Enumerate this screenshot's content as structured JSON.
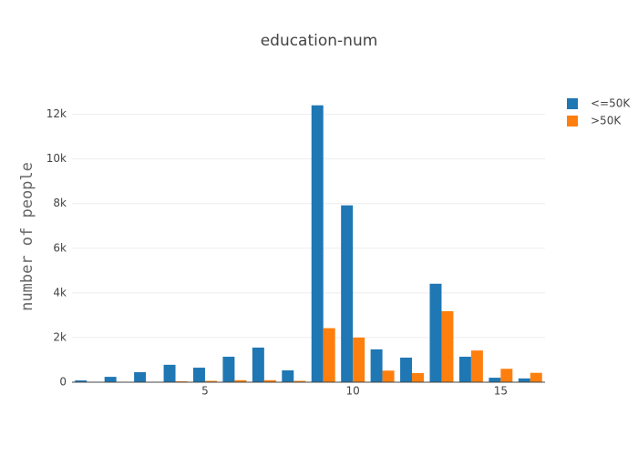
{
  "chart_data": {
    "type": "bar",
    "title": "education-num",
    "y_label": "number of people",
    "x": [
      1,
      2,
      3,
      4,
      5,
      6,
      7,
      8,
      9,
      10,
      11,
      12,
      13,
      14,
      15,
      16
    ],
    "series": [
      {
        "name": "<=50K",
        "color": "#1f77b4",
        "values": [
          80,
          240,
          450,
          780,
          650,
          1140,
          1550,
          530,
          12400,
          7920,
          1470,
          1100,
          4410,
          1140,
          200,
          170
        ]
      },
      {
        "name": ">50K",
        "color": "#ff7f0e",
        "values": [
          0,
          20,
          20,
          40,
          60,
          90,
          90,
          60,
          2420,
          2000,
          520,
          410,
          3180,
          1420,
          600,
          420
        ]
      }
    ],
    "xlim": [
      0.5,
      16.5
    ],
    "xticks": [
      5,
      10,
      15
    ],
    "ylim": [
      0,
      13000
    ],
    "yticks": [
      0,
      {
        "value": 2000,
        "label": "2k"
      },
      {
        "value": 4000,
        "label": "4k"
      },
      {
        "value": 6000,
        "label": "6k"
      },
      {
        "value": 8000,
        "label": "8k"
      },
      {
        "value": 10000,
        "label": "10k"
      },
      {
        "value": 12000,
        "label": "12k"
      }
    ],
    "grid": true,
    "legend": "top-right"
  }
}
